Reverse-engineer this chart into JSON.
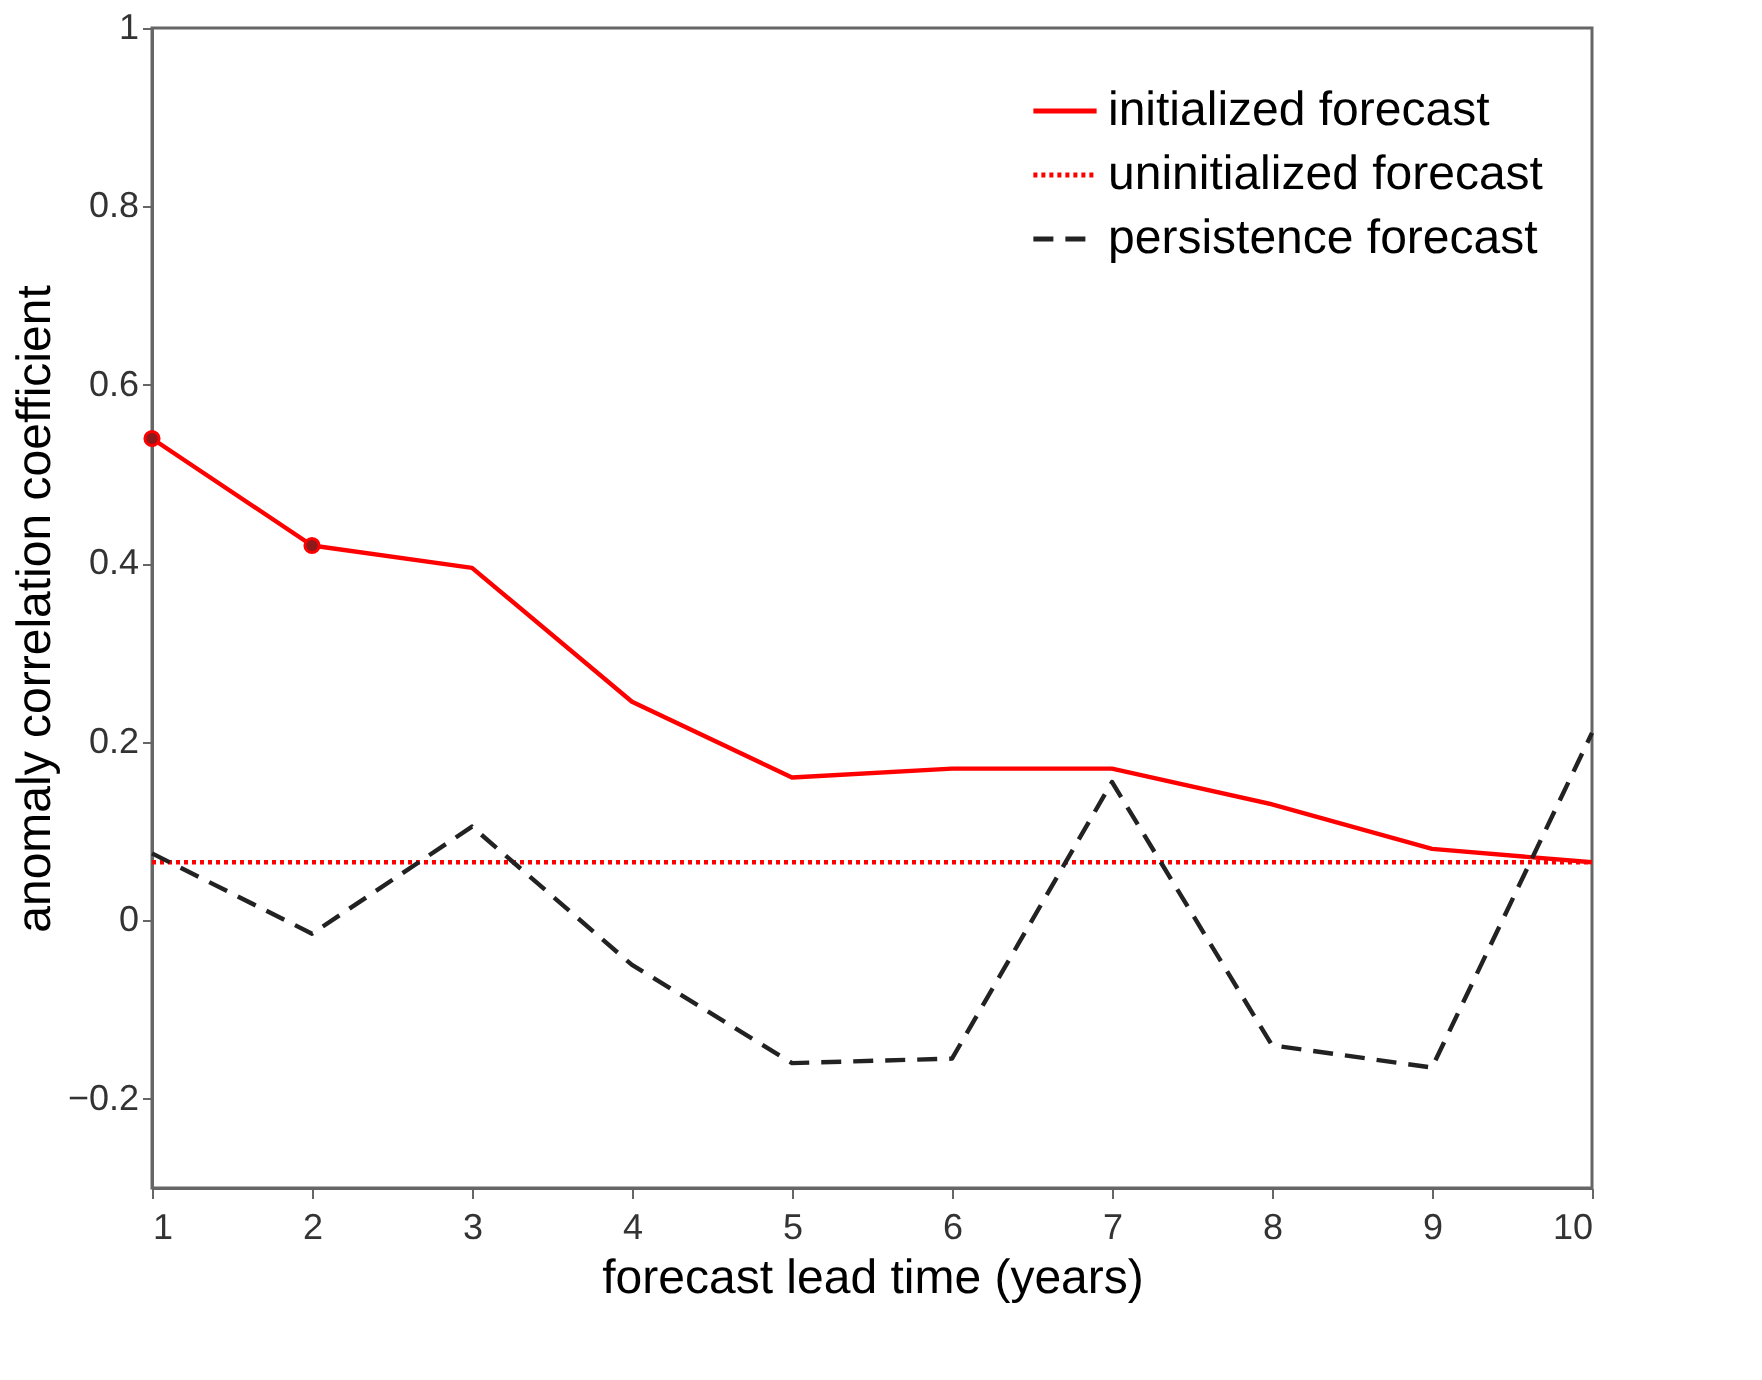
{
  "chart_data": {
    "type": "line",
    "xlabel": "forecast lead time (years)",
    "ylabel": "anomaly correlation coefficient",
    "x": [
      1,
      2,
      3,
      4,
      5,
      6,
      7,
      8,
      9,
      10
    ],
    "series": [
      {
        "name": "initialized forecast",
        "color": "#ff0000",
        "line_style": "solid",
        "values": [
          0.54,
          0.42,
          0.395,
          0.245,
          0.16,
          0.17,
          0.17,
          0.13,
          0.08,
          0.065
        ]
      },
      {
        "name": "uninitialized forecast",
        "color": "#ff0000",
        "line_style": "dotted",
        "values": [
          0.065,
          0.065,
          0.065,
          0.065,
          0.065,
          0.065,
          0.065,
          0.065,
          0.065,
          0.065
        ]
      },
      {
        "name": "persistence forecast",
        "color": "#222222",
        "line_style": "dashed",
        "values": [
          0.075,
          -0.015,
          0.105,
          -0.05,
          -0.16,
          -0.155,
          0.155,
          -0.14,
          -0.165,
          0.21
        ]
      },
      {
        "type": "scatter",
        "marker": "circle",
        "color": "#8b1a1a",
        "x": [
          1,
          2
        ],
        "values": [
          0.54,
          0.42
        ]
      }
    ],
    "xlim": [
      1,
      10
    ],
    "xticks": [
      1,
      2,
      3,
      4,
      5,
      6,
      7,
      8,
      9,
      10
    ],
    "ylim": [
      -0.3,
      1
    ],
    "yticks": [
      -0.2,
      0,
      0.2,
      0.4,
      0.6,
      0.8,
      1
    ],
    "grid": false,
    "legend": "top right"
  }
}
